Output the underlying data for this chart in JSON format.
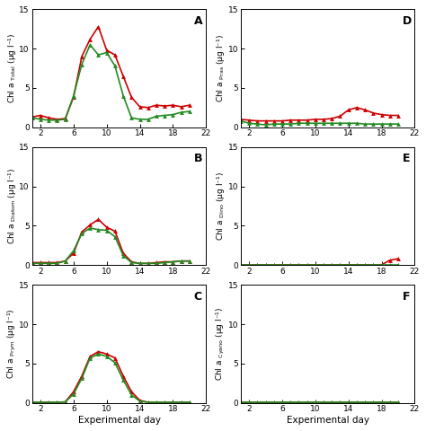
{
  "panels": [
    {
      "label": "A",
      "ylabel_main": "Chl a",
      "ylabel_sub": "Total",
      "ylabel_unit": "(μg l⁻¹)",
      "red": [
        1.3,
        1.5,
        1.2,
        1.0,
        1.1,
        3.8,
        9.0,
        11.2,
        12.8,
        9.8,
        9.2,
        6.5,
        3.8,
        2.6,
        2.5,
        2.8,
        2.7,
        2.8,
        2.6,
        2.8
      ],
      "green": [
        1.2,
        1.0,
        0.9,
        0.9,
        1.0,
        4.0,
        8.0,
        10.5,
        9.2,
        9.5,
        7.8,
        4.0,
        1.2,
        1.0,
        1.0,
        1.4,
        1.5,
        1.6,
        1.9,
        2.0
      ]
    },
    {
      "label": "B",
      "ylabel_main": "Chl a",
      "ylabel_sub": "Diatom",
      "ylabel_unit": "(μg l⁻¹)",
      "red": [
        0.3,
        0.3,
        0.3,
        0.3,
        0.5,
        1.5,
        4.2,
        5.1,
        5.8,
        4.8,
        4.3,
        1.5,
        0.4,
        0.2,
        0.2,
        0.3,
        0.4,
        0.4,
        0.5,
        0.5
      ],
      "green": [
        0.2,
        0.2,
        0.2,
        0.2,
        0.5,
        1.8,
        4.0,
        4.7,
        4.5,
        4.4,
        3.6,
        1.2,
        0.3,
        0.2,
        0.2,
        0.2,
        0.3,
        0.4,
        0.5,
        0.5
      ]
    },
    {
      "label": "C",
      "ylabel_main": "Chl a",
      "ylabel_sub": "Prym",
      "ylabel_unit": "(μg l⁻¹)",
      "red": [
        0.05,
        0.05,
        0.05,
        0.05,
        0.1,
        1.4,
        3.4,
        5.9,
        6.5,
        6.2,
        5.7,
        3.4,
        1.4,
        0.3,
        0.05,
        0.05,
        0.05,
        0.05,
        0.05,
        0.05
      ],
      "green": [
        0.05,
        0.05,
        0.05,
        0.05,
        0.1,
        1.1,
        3.1,
        5.7,
        6.2,
        5.9,
        5.1,
        2.9,
        1.0,
        0.2,
        0.05,
        0.05,
        0.05,
        0.05,
        0.05,
        0.05
      ]
    },
    {
      "label": "D",
      "ylabel_main": "Chl a",
      "ylabel_sub": "Pras",
      "ylabel_unit": "(μg l⁻¹)",
      "red": [
        1.0,
        0.9,
        0.8,
        0.8,
        0.8,
        0.8,
        0.9,
        0.9,
        0.9,
        1.0,
        1.0,
        1.1,
        1.4,
        2.2,
        2.5,
        2.2,
        1.8,
        1.6,
        1.5,
        1.5
      ],
      "green": [
        0.8,
        0.5,
        0.4,
        0.3,
        0.4,
        0.4,
        0.4,
        0.5,
        0.5,
        0.5,
        0.5,
        0.5,
        0.5,
        0.5,
        0.5,
        0.4,
        0.4,
        0.4,
        0.4,
        0.4
      ]
    },
    {
      "label": "E",
      "ylabel_main": "Chl a",
      "ylabel_sub": "Dino",
      "ylabel_unit": "(μg l⁻¹)",
      "red": [
        0.02,
        0.02,
        0.02,
        0.02,
        0.02,
        0.02,
        0.02,
        0.02,
        0.02,
        0.02,
        0.02,
        0.02,
        0.02,
        0.02,
        0.02,
        0.02,
        0.02,
        0.02,
        0.6,
        0.8
      ],
      "green": [
        0.02,
        0.02,
        0.02,
        0.02,
        0.02,
        0.02,
        0.02,
        0.02,
        0.02,
        0.02,
        0.02,
        0.02,
        0.02,
        0.02,
        0.02,
        0.02,
        0.02,
        0.02,
        0.02,
        0.02
      ]
    },
    {
      "label": "F",
      "ylabel_main": "Chl a",
      "ylabel_sub": "Cyano",
      "ylabel_unit": "(μg l⁻¹)",
      "red": [
        0.01,
        0.01,
        0.01,
        0.01,
        0.01,
        0.01,
        0.01,
        0.01,
        0.01,
        0.01,
        0.01,
        0.01,
        0.01,
        0.01,
        0.01,
        0.01,
        0.01,
        0.01,
        0.01,
        0.01
      ],
      "green": [
        0.01,
        0.01,
        0.01,
        0.01,
        0.01,
        0.01,
        0.01,
        0.01,
        0.01,
        0.01,
        0.01,
        0.01,
        0.01,
        0.01,
        0.01,
        0.01,
        0.01,
        0.01,
        0.01,
        0.01
      ]
    }
  ],
  "x": [
    1,
    2,
    3,
    4,
    5,
    6,
    7,
    8,
    9,
    10,
    11,
    12,
    13,
    14,
    15,
    16,
    17,
    18,
    19,
    20
  ],
  "xlim": [
    1,
    22
  ],
  "ylim": [
    0,
    15
  ],
  "xticks": [
    2,
    6,
    10,
    14,
    18,
    22
  ],
  "yticks": [
    0,
    5,
    10,
    15
  ],
  "xlabel": "Experimental day",
  "red_color": "#cc0000",
  "green_color": "#228B22",
  "marker": "^",
  "markersize": 3.5,
  "linewidth": 1.2,
  "figwidth": 4.74,
  "figheight": 4.8,
  "dpi": 100
}
